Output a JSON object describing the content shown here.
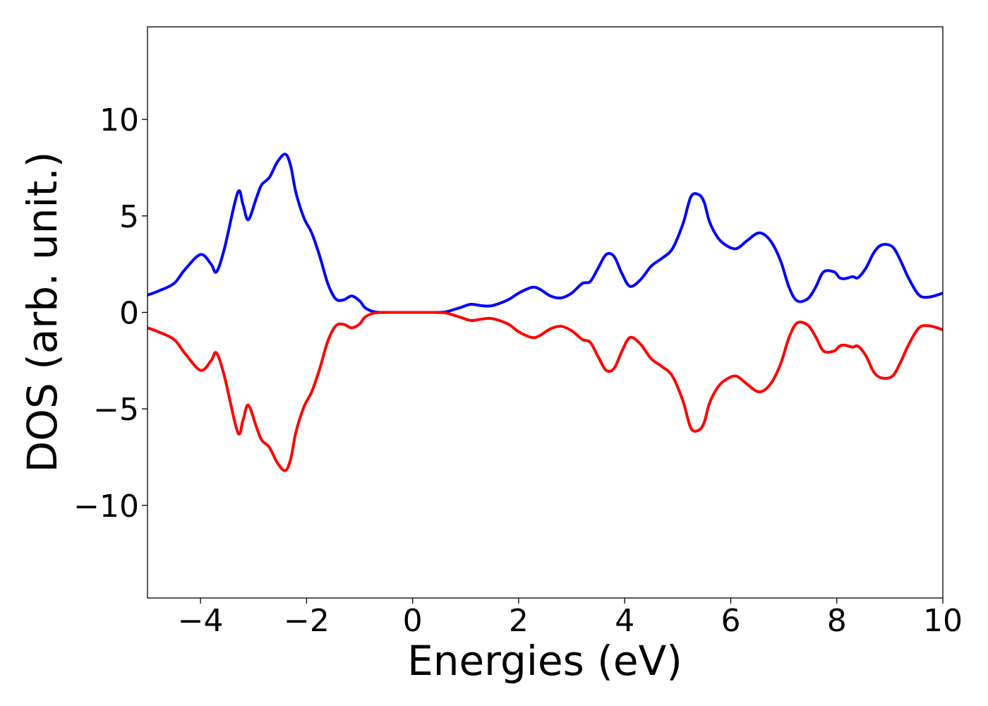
{
  "chart_data": {
    "type": "line",
    "xlabel": "Energies (eV)",
    "ylabel": "DOS (arb. unit.)",
    "xlim": [
      -5,
      10
    ],
    "ylim": [
      -14.8,
      14.8
    ],
    "x_ticks": [
      -4,
      -2,
      0,
      2,
      4,
      6,
      8,
      10
    ],
    "x_tick_labels": [
      "−4",
      "−2",
      "0",
      "2",
      "4",
      "6",
      "8",
      "10"
    ],
    "y_ticks": [
      -10,
      -5,
      0,
      5,
      10
    ],
    "y_tick_labels": [
      "−10",
      "−5",
      "0",
      "5",
      "10"
    ],
    "grid": false,
    "legend": "none",
    "series": [
      {
        "color": "#0000ff",
        "x": [
          -5.0,
          -4.8,
          -4.5,
          -4.3,
          -4.0,
          -3.8,
          -3.7,
          -3.55,
          -3.3,
          -3.2,
          -3.1,
          -2.95,
          -2.85,
          -2.7,
          -2.55,
          -2.4,
          -2.3,
          -2.2,
          -2.05,
          -1.9,
          -1.75,
          -1.6,
          -1.45,
          -1.3,
          -1.15,
          -1.0,
          -0.9,
          -0.75,
          -0.6,
          -0.4,
          0.0,
          0.4,
          0.6,
          0.7,
          0.9,
          1.1,
          1.3,
          1.5,
          1.8,
          2.0,
          2.25,
          2.4,
          2.6,
          2.8,
          3.0,
          3.2,
          3.35,
          3.5,
          3.65,
          3.8,
          3.95,
          4.1,
          4.3,
          4.5,
          4.7,
          4.9,
          5.1,
          5.25,
          5.4,
          5.5,
          5.6,
          5.75,
          5.9,
          6.1,
          6.3,
          6.5,
          6.65,
          6.8,
          6.95,
          7.1,
          7.25,
          7.45,
          7.6,
          7.75,
          7.95,
          8.05,
          8.15,
          8.3,
          8.4,
          8.55,
          8.7,
          8.85,
          9.05,
          9.2,
          9.35,
          9.55,
          9.75,
          10.0
        ],
        "y": [
          0.9,
          1.1,
          1.5,
          2.2,
          3.0,
          2.5,
          2.1,
          3.3,
          6.2,
          5.6,
          4.8,
          5.9,
          6.6,
          7.0,
          7.8,
          8.2,
          7.6,
          6.2,
          4.9,
          4.1,
          2.9,
          1.5,
          0.7,
          0.65,
          0.85,
          0.6,
          0.25,
          0.05,
          0.0,
          0.0,
          0.0,
          0.0,
          0.02,
          0.08,
          0.25,
          0.42,
          0.35,
          0.35,
          0.65,
          1.0,
          1.3,
          1.2,
          0.85,
          0.75,
          1.0,
          1.5,
          1.6,
          2.3,
          3.0,
          2.9,
          2.0,
          1.35,
          1.7,
          2.4,
          2.8,
          3.3,
          4.6,
          6.0,
          6.1,
          5.7,
          4.7,
          3.9,
          3.5,
          3.3,
          3.7,
          4.1,
          4.0,
          3.5,
          2.6,
          1.3,
          0.6,
          0.7,
          1.3,
          2.1,
          2.1,
          1.8,
          1.75,
          1.85,
          1.8,
          2.3,
          3.1,
          3.5,
          3.4,
          2.7,
          1.8,
          0.9,
          0.8,
          1.0
        ]
      },
      {
        "color": "#ff0000",
        "x": [
          -5.0,
          -4.8,
          -4.5,
          -4.3,
          -4.0,
          -3.8,
          -3.7,
          -3.55,
          -3.3,
          -3.2,
          -3.1,
          -2.95,
          -2.85,
          -2.7,
          -2.55,
          -2.4,
          -2.3,
          -2.2,
          -2.05,
          -1.9,
          -1.75,
          -1.6,
          -1.45,
          -1.3,
          -1.15,
          -1.0,
          -0.9,
          -0.75,
          -0.6,
          -0.4,
          0.0,
          0.4,
          0.6,
          0.7,
          0.9,
          1.1,
          1.3,
          1.5,
          1.8,
          2.0,
          2.25,
          2.4,
          2.6,
          2.8,
          3.0,
          3.2,
          3.35,
          3.5,
          3.65,
          3.8,
          3.95,
          4.1,
          4.3,
          4.5,
          4.7,
          4.9,
          5.1,
          5.25,
          5.4,
          5.5,
          5.6,
          5.75,
          5.9,
          6.1,
          6.3,
          6.5,
          6.65,
          6.8,
          6.95,
          7.1,
          7.25,
          7.45,
          7.6,
          7.75,
          7.95,
          8.05,
          8.15,
          8.3,
          8.4,
          8.55,
          8.7,
          8.85,
          9.05,
          9.2,
          9.35,
          9.55,
          9.75,
          10.0
        ],
        "y": [
          -0.8,
          -1.0,
          -1.4,
          -2.1,
          -3.0,
          -2.5,
          -2.1,
          -3.3,
          -6.2,
          -5.6,
          -4.8,
          -5.9,
          -6.6,
          -7.0,
          -7.8,
          -8.2,
          -7.6,
          -6.2,
          -4.9,
          -4.1,
          -2.9,
          -1.5,
          -0.7,
          -0.62,
          -0.8,
          -0.6,
          -0.25,
          -0.05,
          0.0,
          0.0,
          0.0,
          0.0,
          -0.02,
          -0.08,
          -0.25,
          -0.42,
          -0.35,
          -0.32,
          -0.6,
          -1.0,
          -1.3,
          -1.2,
          -0.85,
          -0.72,
          -0.95,
          -1.4,
          -1.55,
          -2.3,
          -3.0,
          -2.9,
          -2.0,
          -1.3,
          -1.65,
          -2.4,
          -2.8,
          -3.3,
          -4.6,
          -6.0,
          -6.1,
          -5.7,
          -4.7,
          -3.9,
          -3.5,
          -3.3,
          -3.7,
          -4.1,
          -4.0,
          -3.5,
          -2.6,
          -1.3,
          -0.55,
          -0.65,
          -1.25,
          -2.0,
          -2.0,
          -1.75,
          -1.7,
          -1.8,
          -1.75,
          -2.25,
          -3.1,
          -3.4,
          -3.3,
          -2.6,
          -1.7,
          -0.8,
          -0.7,
          -0.9
        ]
      }
    ]
  }
}
